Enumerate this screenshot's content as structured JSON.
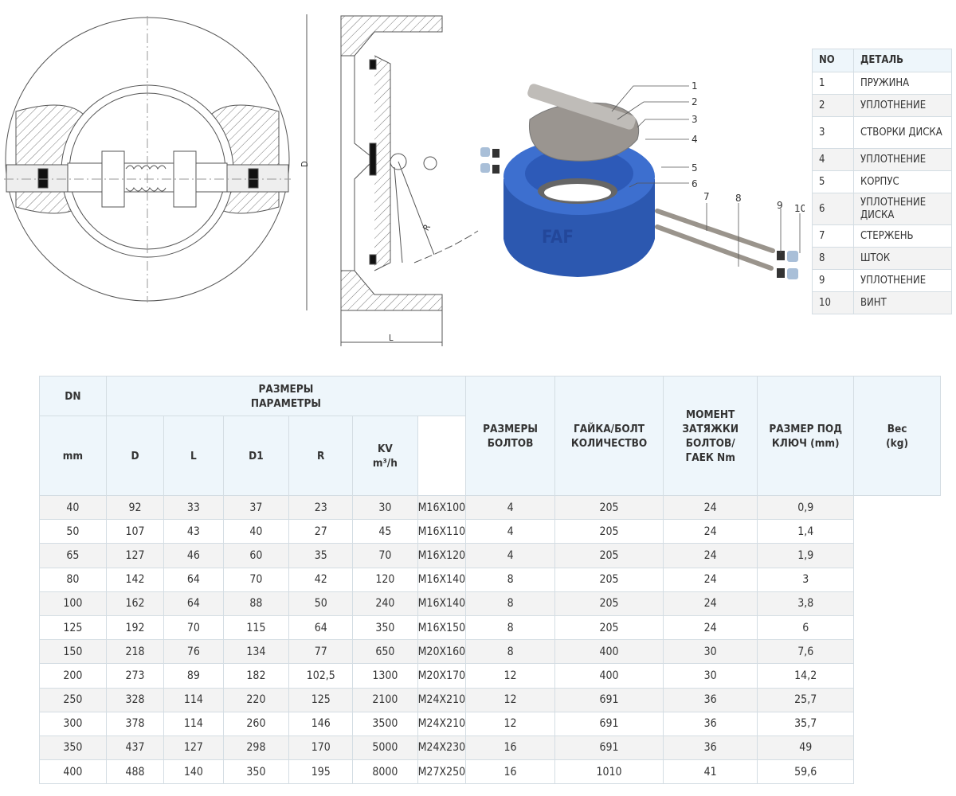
{
  "drawing": {
    "dim_D": "D",
    "dim_L": "L",
    "dim_R": "R",
    "logo": "FAF",
    "callouts": [
      "1",
      "2",
      "3",
      "4",
      "5",
      "6",
      "7",
      "8",
      "9",
      "10"
    ]
  },
  "parts_table": {
    "headers": [
      "NO",
      "ДЕТАЛЬ"
    ],
    "rows": [
      [
        "1",
        "ПРУЖИНА"
      ],
      [
        "2",
        "УПЛОТНЕНИЕ"
      ],
      [
        "3",
        "СТВОРКИ ДИСКА"
      ],
      [
        "4",
        "УПЛОТНЕНИЕ"
      ],
      [
        "5",
        "КОРПУС"
      ],
      [
        "6",
        "УПЛОТНЕНИЕ ДИСКА"
      ],
      [
        "7",
        "СТЕРЖЕНЬ"
      ],
      [
        "8",
        "ШТОК"
      ],
      [
        "9",
        "УПЛОТНЕНИЕ"
      ],
      [
        "10",
        "ВИНТ"
      ]
    ]
  },
  "spec_table": {
    "dn": "DN",
    "group": "РАЗМЕРЫ ПАРАМЕТРЫ",
    "mm": "mm",
    "D": "D",
    "L": "L",
    "D1": "D1",
    "R": "R",
    "kv": "KV",
    "kv_unit": "m³/h",
    "bolts": "РАЗМЕРЫ БОЛТОВ",
    "nut_count": "ГАЙКА/БОЛТ КОЛИЧЕСТВО",
    "torque": "МОМЕНТ ЗАТЯЖКИ БОЛТОВ/ ГАЕК Nm",
    "wrench": "РАЗМЕР ПОД КЛЮЧ (mm)",
    "weight": "Вес (kg)",
    "rows": [
      [
        "40",
        "92",
        "33",
        "37",
        "23",
        "30",
        "M16X100",
        "4",
        "205",
        "24",
        "0,9"
      ],
      [
        "50",
        "107",
        "43",
        "40",
        "27",
        "45",
        "M16X110",
        "4",
        "205",
        "24",
        "1,4"
      ],
      [
        "65",
        "127",
        "46",
        "60",
        "35",
        "70",
        "M16X120",
        "4",
        "205",
        "24",
        "1,9"
      ],
      [
        "80",
        "142",
        "64",
        "70",
        "42",
        "120",
        "M16X140",
        "8",
        "205",
        "24",
        "3"
      ],
      [
        "100",
        "162",
        "64",
        "88",
        "50",
        "240",
        "M16X140",
        "8",
        "205",
        "24",
        "3,8"
      ],
      [
        "125",
        "192",
        "70",
        "115",
        "64",
        "350",
        "M16X150",
        "8",
        "205",
        "24",
        "6"
      ],
      [
        "150",
        "218",
        "76",
        "134",
        "77",
        "650",
        "M20X160",
        "8",
        "400",
        "30",
        "7,6"
      ],
      [
        "200",
        "273",
        "89",
        "182",
        "102,5",
        "1300",
        "M20X170",
        "12",
        "400",
        "30",
        "14,2"
      ],
      [
        "250",
        "328",
        "114",
        "220",
        "125",
        "2100",
        "M24X210",
        "12",
        "691",
        "36",
        "25,7"
      ],
      [
        "300",
        "378",
        "114",
        "260",
        "146",
        "3500",
        "M24X210",
        "12",
        "691",
        "36",
        "35,7"
      ],
      [
        "350",
        "437",
        "127",
        "298",
        "170",
        "5000",
        "M24X230",
        "16",
        "691",
        "36",
        "49"
      ],
      [
        "400",
        "488",
        "140",
        "350",
        "195",
        "8000",
        "M27X250",
        "16",
        "1010",
        "41",
        "59,6"
      ]
    ]
  }
}
